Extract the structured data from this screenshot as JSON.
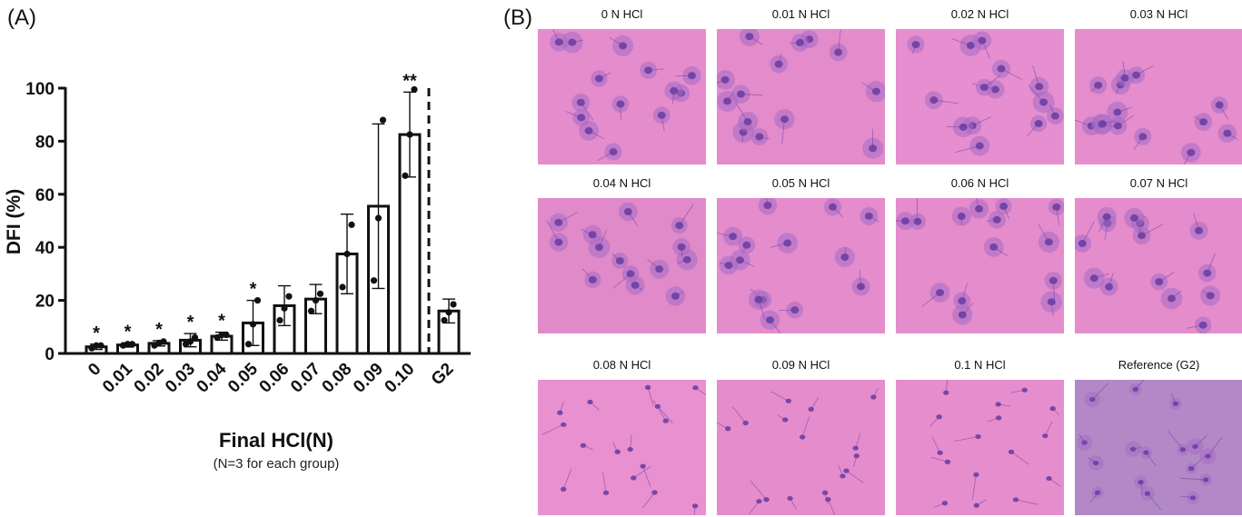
{
  "panel_a_label": "(A)",
  "panel_b_label": "(B)",
  "chart_data": {
    "type": "bar",
    "categories": [
      "0",
      "0.01",
      "0.02",
      "0.03",
      "0.04",
      "0.05",
      "0.06",
      "0.07",
      "0.08",
      "0.09",
      "0.10",
      "G2"
    ],
    "values": [
      2.5,
      3.2,
      3.8,
      5,
      6.5,
      11.5,
      18,
      20.5,
      37.5,
      55.5,
      82.5,
      16
    ],
    "errors": [
      1,
      0.8,
      1,
      2.5,
      1.5,
      8.5,
      7.5,
      5.5,
      15,
      31,
      16,
      4.5
    ],
    "points": [
      [
        2,
        3,
        3
      ],
      [
        3,
        3.5,
        3.5
      ],
      [
        3,
        4,
        4.5
      ],
      [
        3.5,
        4.5,
        6
      ],
      [
        6,
        7,
        7
      ],
      [
        3.5,
        11,
        20
      ],
      [
        12.5,
        17,
        21.5
      ],
      [
        16,
        20,
        22.5
      ],
      [
        25,
        37.5,
        48.5
      ],
      [
        27.5,
        51,
        88
      ],
      [
        67,
        82.5,
        99.5
      ],
      [
        12.5,
        15.5,
        18.5
      ]
    ],
    "significance": [
      "*",
      "*",
      "*",
      "*",
      "*",
      "*",
      "",
      "",
      "",
      "",
      "**",
      ""
    ],
    "ylabel": "DFI (%)",
    "xlabel": "Final HCl(N)",
    "xlabel_note": "(N=3 for each group)",
    "ylim": [
      0,
      100
    ],
    "yticks": [
      "0",
      "20",
      "40",
      "60",
      "80",
      "100"
    ],
    "grid": false,
    "separator": "dashed vertical line before G2"
  },
  "micrographs": [
    {
      "caption": "0 N HCl",
      "color": "#e58ccd"
    },
    {
      "caption": "0.01 N HCl",
      "color": "#e48bcb"
    },
    {
      "caption": "0.02 N HCl",
      "color": "#e68ecf"
    },
    {
      "caption": "0.03 N HCl",
      "color": "#e58dcd"
    },
    {
      "caption": "0.04 N HCl",
      "color": "#e18ac9"
    },
    {
      "caption": "0.05 N HCl",
      "color": "#e58ccd"
    },
    {
      "caption": "0.06 N HCl",
      "color": "#e48ccc"
    },
    {
      "caption": "0.07 N HCl",
      "color": "#e58ccd"
    },
    {
      "caption": "0.08 N HCl",
      "color": "#e890d0"
    },
    {
      "caption": "0.09 N HCl",
      "color": "#e58ccd"
    },
    {
      "caption": "0.1 N HCl",
      "color": "#e68dce"
    },
    {
      "caption": "Reference (G2)",
      "color": "#b289c6"
    }
  ],
  "colors": {
    "sperm_head": "#6b3fa3",
    "sperm_halo": "#a66bc4",
    "axis": "#111111"
  }
}
